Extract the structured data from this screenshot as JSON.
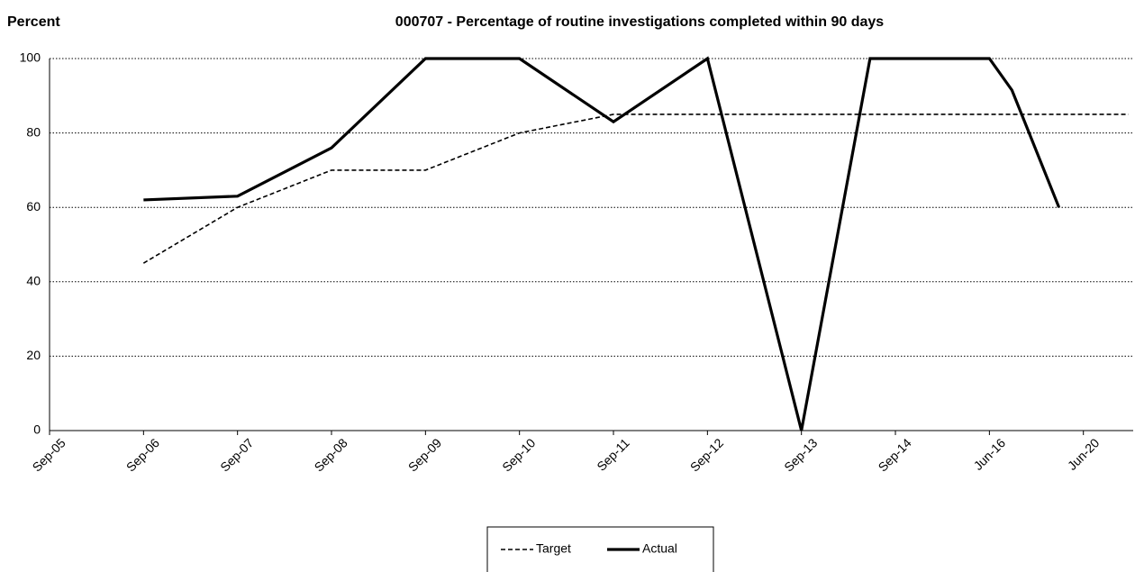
{
  "chart_data": {
    "type": "line",
    "title": "000707 - Percentage of routine investigations completed within 90 days",
    "y_label": "Percent",
    "xlim": [
      0,
      11.53
    ],
    "xticks": [
      {
        "value": 0,
        "label": "Sep-05"
      },
      {
        "value": 1,
        "label": "Sep-06"
      },
      {
        "value": 2,
        "label": "Sep-07"
      },
      {
        "value": 3,
        "label": "Sep-08"
      },
      {
        "value": 4,
        "label": "Sep-09"
      },
      {
        "value": 5,
        "label": "Sep-10"
      },
      {
        "value": 6,
        "label": "Sep-11"
      },
      {
        "value": 7,
        "label": "Sep-12"
      },
      {
        "value": 8,
        "label": "Sep-13"
      },
      {
        "value": 9,
        "label": "Sep-14"
      },
      {
        "value": 10,
        "label": "Jun-16"
      },
      {
        "value": 11,
        "label": "Jun-20"
      }
    ],
    "ylim": [
      0,
      100
    ],
    "yticks": [
      0,
      20,
      40,
      60,
      80,
      100
    ],
    "grid": true,
    "legend": "bottom",
    "series": [
      {
        "name": "Target",
        "color": "#000000",
        "line_style": "dashed",
        "x": [
          1,
          2,
          3,
          4,
          5,
          6,
          7,
          8,
          9,
          10,
          11,
          11.48
        ],
        "values": [
          45,
          60,
          70,
          70,
          80,
          85,
          85,
          85,
          85,
          85,
          85,
          85
        ]
      },
      {
        "name": "Actual",
        "color": "#000000",
        "line_style": "solid",
        "x": [
          1,
          2,
          3,
          4,
          5,
          6,
          7,
          8,
          8.73,
          10,
          10.24,
          10.74
        ],
        "values": [
          62,
          63,
          76,
          100,
          100,
          83,
          100,
          0,
          100,
          100,
          91.5,
          60
        ]
      }
    ]
  }
}
